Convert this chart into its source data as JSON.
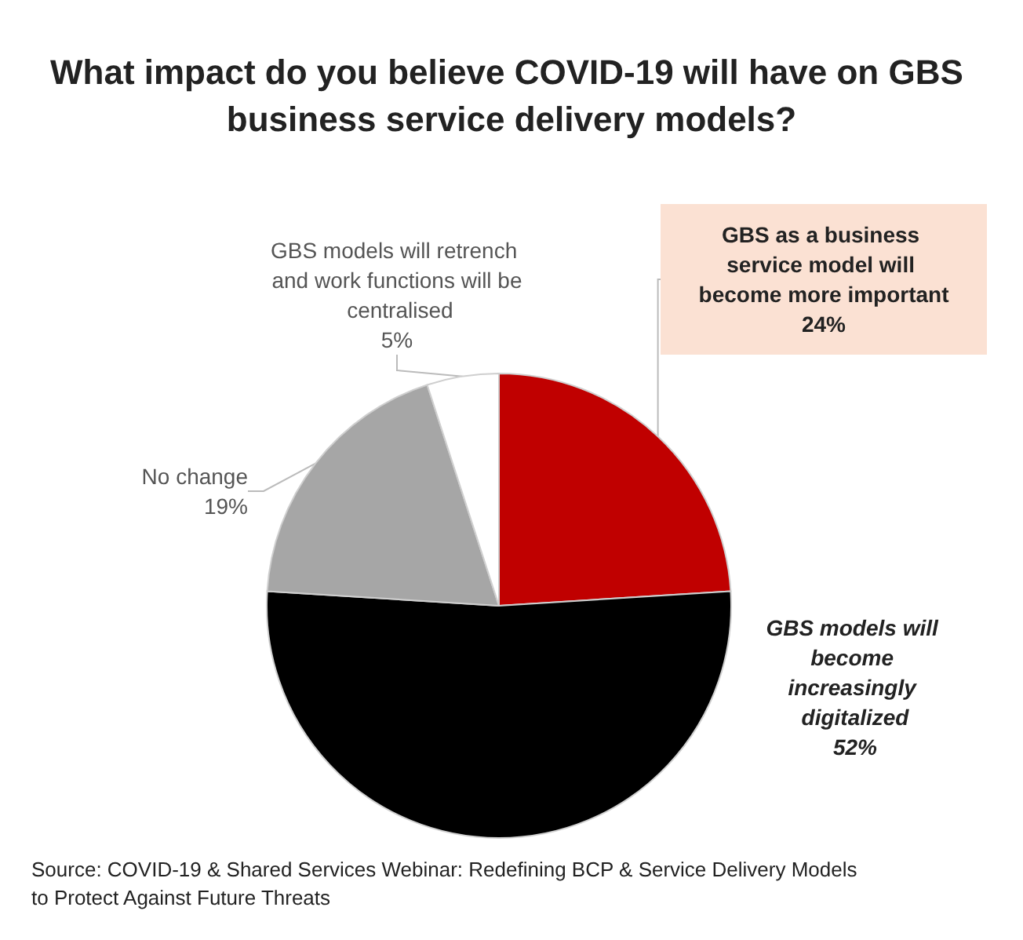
{
  "chart_data": {
    "type": "pie",
    "title": "What impact do you believe COVID-19 will have on GBS business service delivery models?",
    "categories": [
      "GBS as a business service model will become more important",
      "GBS models will become increasingly digitalized",
      "No change",
      "GBS models will retrench and work functions will be centralised"
    ],
    "values": [
      24,
      52,
      19,
      5
    ],
    "colors": [
      "#c00000",
      "#000000",
      "#a6a6a6",
      "#ffffff"
    ],
    "value_labels": [
      "24%",
      "52%",
      "19%",
      "5%"
    ],
    "legend": false,
    "annotations": [
      "Source: COVID-19 & Shared Services Webinar: Redefining BCP & Service Delivery Models to Protect Against Future Threats"
    ]
  }
}
